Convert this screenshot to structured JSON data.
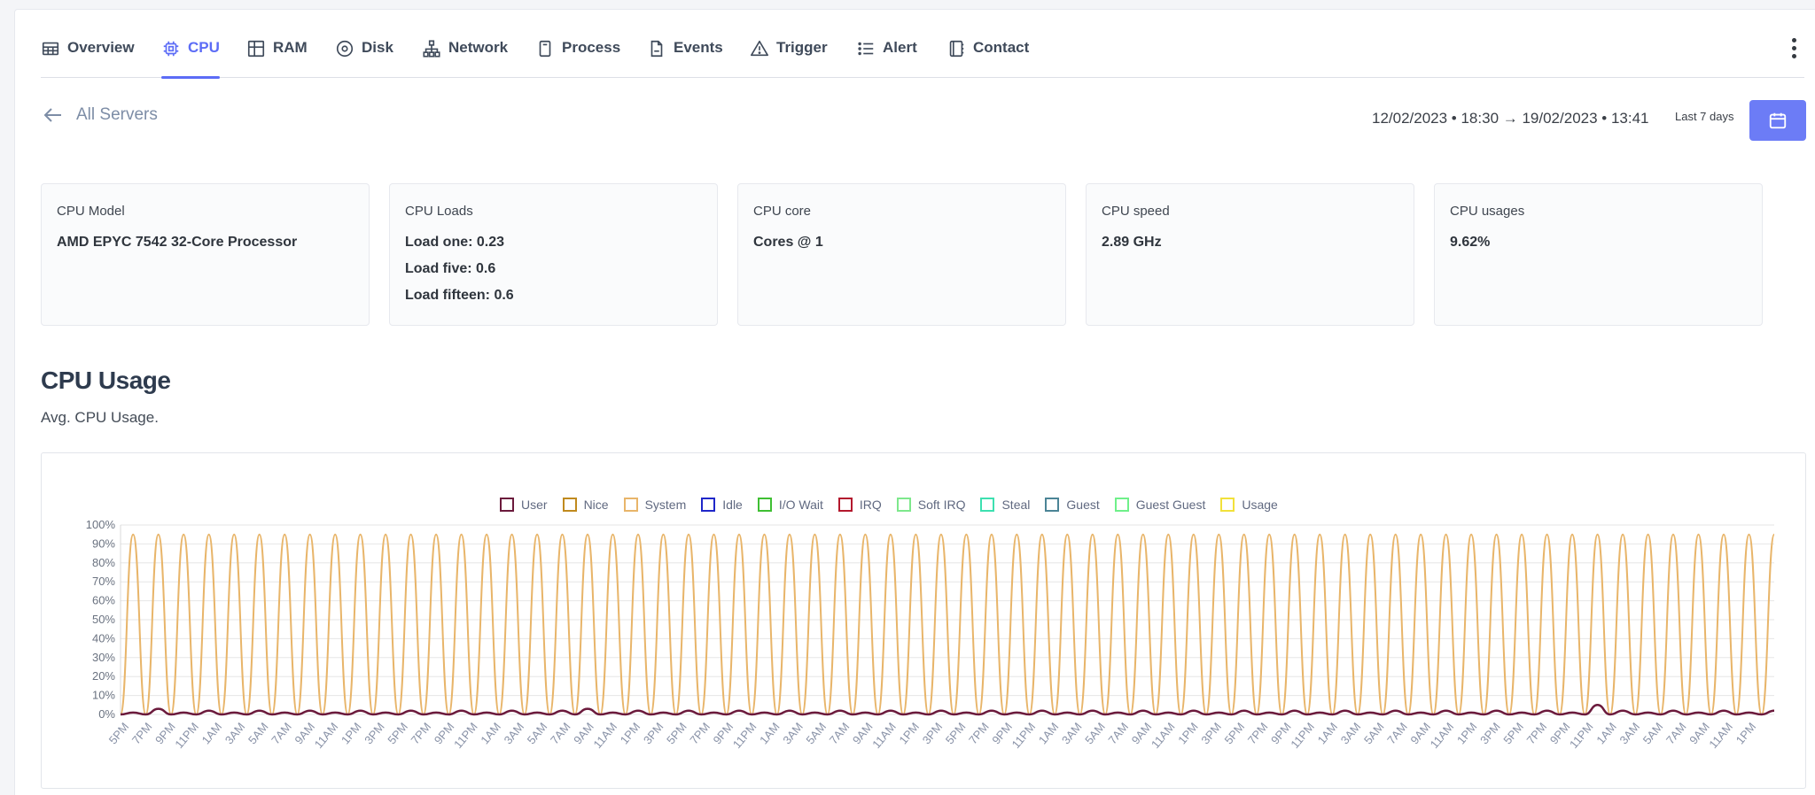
{
  "tabs": [
    {
      "label": "Overview",
      "icon": "table-icon"
    },
    {
      "label": "CPU",
      "icon": "cpu-icon",
      "active": true
    },
    {
      "label": "RAM",
      "icon": "grid-icon"
    },
    {
      "label": "Disk",
      "icon": "disk-icon"
    },
    {
      "label": "Network",
      "icon": "network-icon"
    },
    {
      "label": "Process",
      "icon": "process-icon"
    },
    {
      "label": "Events",
      "icon": "file-icon"
    },
    {
      "label": "Trigger",
      "icon": "warning-icon"
    },
    {
      "label": "Alert",
      "icon": "list-icon"
    },
    {
      "label": "Contact",
      "icon": "contact-icon"
    }
  ],
  "header": {
    "back_label": "All Servers",
    "date_range": "12/02/2023 • 18:30 → 19/02/2023 • 13:41",
    "range_label": "Last 7 days",
    "accent_color": "#6c7cf6"
  },
  "cards": [
    {
      "title": "CPU Model",
      "lines": [
        "AMD EPYC 7542 32-Core Processor"
      ]
    },
    {
      "title": "CPU Loads",
      "lines": [
        "Load one: 0.23",
        "Load five: 0.6",
        "Load fifteen: 0.6"
      ]
    },
    {
      "title": "CPU core",
      "lines": [
        "Cores @ 1"
      ]
    },
    {
      "title": "CPU speed",
      "lines": [
        "2.89 GHz"
      ]
    },
    {
      "title": "CPU usages",
      "lines": [
        "9.62%"
      ]
    }
  ],
  "section": {
    "title": "CPU Usage",
    "subtitle": "Avg. CPU Usage."
  },
  "chart_data": {
    "type": "line",
    "ylim": [
      0,
      100
    ],
    "y_ticks": [
      "0%",
      "10%",
      "20%",
      "30%",
      "40%",
      "50%",
      "60%",
      "70%",
      "80%",
      "90%",
      "100%"
    ],
    "x_ticks": [
      "5PM",
      "7PM",
      "9PM",
      "11PM",
      "1AM",
      "3AM",
      "5AM",
      "7AM",
      "9AM",
      "11AM",
      "1PM",
      "3PM",
      "5PM",
      "7PM",
      "9PM",
      "11PM",
      "1AM",
      "3AM",
      "5AM",
      "7AM",
      "9AM",
      "11AM",
      "1PM",
      "3PM",
      "5PM",
      "7PM",
      "9PM",
      "11PM",
      "1AM",
      "3AM",
      "5AM",
      "7AM",
      "9AM",
      "11AM",
      "1PM",
      "3PM",
      "5PM",
      "7PM",
      "9PM",
      "11PM",
      "1AM",
      "3AM",
      "5AM",
      "7AM",
      "9AM",
      "11AM",
      "1PM",
      "3PM",
      "5PM",
      "7PM",
      "9PM",
      "11PM",
      "1AM",
      "3AM",
      "5AM",
      "7AM",
      "9AM",
      "11AM",
      "1PM",
      "3PM",
      "5PM",
      "7PM",
      "9PM",
      "11PM",
      "1AM",
      "3AM",
      "5AM",
      "7AM",
      "9AM",
      "11AM",
      "1PM"
    ],
    "legend": [
      {
        "name": "User",
        "color": "#6b1a3c"
      },
      {
        "name": "Nice",
        "color": "#c08a1e"
      },
      {
        "name": "System",
        "color": "#e8b56a"
      },
      {
        "name": "Idle",
        "color": "#1f27c9"
      },
      {
        "name": "I/O Wait",
        "color": "#3fbf33"
      },
      {
        "name": "IRQ",
        "color": "#b3182d"
      },
      {
        "name": "Soft IRQ",
        "color": "#7ee88c"
      },
      {
        "name": "Steal",
        "color": "#3de0b0"
      },
      {
        "name": "Guest",
        "color": "#4b8496"
      },
      {
        "name": "Guest Guest",
        "color": "#6ff08a"
      },
      {
        "name": "Usage",
        "color": "#f2e13a"
      }
    ],
    "series": [
      {
        "name": "System",
        "color": "#e8b56a",
        "values": [
          0,
          95,
          0,
          95,
          0,
          95,
          0,
          95,
          0,
          95,
          0,
          95,
          0,
          95,
          0,
          95,
          0,
          95,
          0,
          95,
          0,
          95,
          0,
          95,
          0,
          95,
          0,
          95,
          0,
          95,
          0,
          95,
          0,
          95,
          0,
          95,
          0,
          95,
          0,
          95,
          0,
          95,
          0,
          95,
          0,
          95,
          0,
          95,
          0,
          95,
          0,
          95,
          0,
          95,
          0,
          95,
          0,
          95,
          0,
          95,
          0,
          95,
          0,
          95,
          0,
          95,
          0,
          95,
          0,
          95,
          0,
          95,
          0,
          95,
          0,
          95,
          0,
          95,
          0,
          95,
          0,
          95,
          0,
          95,
          0,
          95,
          0,
          95,
          0,
          95,
          0,
          95,
          0,
          95,
          0,
          95,
          0,
          95,
          0,
          95,
          0,
          95,
          0,
          95,
          0,
          95,
          0,
          95,
          0,
          95,
          0,
          95,
          0,
          95,
          0,
          95,
          0,
          95,
          0,
          95,
          0,
          95,
          0,
          95,
          0,
          95,
          0,
          95,
          0,
          95,
          0,
          95
        ]
      },
      {
        "name": "User",
        "color": "#6b1a3c",
        "values": [
          0,
          1,
          0,
          3,
          0,
          1,
          0,
          2,
          0,
          1,
          0,
          2,
          0,
          1,
          0,
          2,
          0,
          1,
          0,
          2,
          0,
          1,
          0,
          2,
          0,
          1,
          0,
          2,
          0,
          1,
          0,
          2,
          0,
          1,
          0,
          2,
          0,
          3,
          0,
          1,
          0,
          2,
          0,
          1,
          0,
          2,
          0,
          1,
          0,
          2,
          0,
          1,
          0,
          2,
          0,
          1,
          0,
          2,
          0,
          1,
          0,
          2,
          0,
          1,
          0,
          2,
          0,
          1,
          0,
          2,
          0,
          1,
          0,
          2,
          0,
          1,
          0,
          2,
          0,
          1,
          0,
          2,
          0,
          1,
          0,
          2,
          0,
          1,
          0,
          2,
          0,
          1,
          0,
          2,
          0,
          1,
          0,
          2,
          0,
          1,
          0,
          2,
          0,
          1,
          0,
          2,
          0,
          1,
          0,
          2,
          0,
          1,
          0,
          2,
          0,
          1,
          0,
          5,
          0,
          2,
          0,
          1,
          0,
          2,
          0,
          1,
          0,
          2,
          0,
          1,
          0,
          2
        ]
      }
    ]
  }
}
